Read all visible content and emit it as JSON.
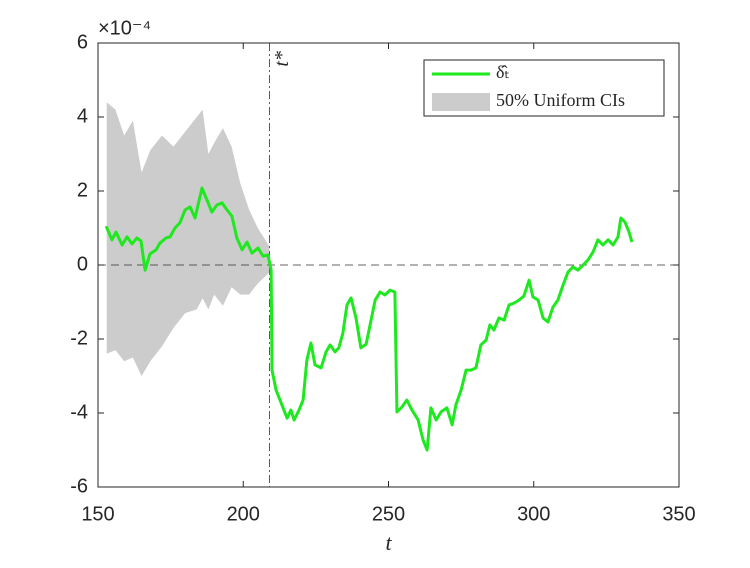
{
  "chart_data": {
    "type": "line",
    "y_multiplier": "×10⁻⁴",
    "xlabel": "t",
    "xlim": [
      150,
      350
    ],
    "xticks": [
      150,
      200,
      250,
      300,
      350
    ],
    "ylim": [
      -6,
      6
    ],
    "yticks": [
      -6,
      -4,
      -2,
      0,
      2,
      4,
      6
    ],
    "vline": {
      "x": 209,
      "label": "t*"
    },
    "hline": 0,
    "legend": "upper right",
    "series": [
      {
        "name": "δ̂ₜ",
        "kind": "line",
        "color": "#1ee81e",
        "x": [
          152.8,
          154.8,
          156.2,
          158.3,
          160,
          161.7,
          163.4,
          164.8,
          166.2,
          167.9,
          170,
          171.3,
          173.4,
          174.8,
          176.5,
          178.2,
          180,
          181.7,
          183.4,
          185.8,
          187.5,
          189.2,
          190.9,
          192.7,
          194.4,
          196.1,
          197.8,
          199.6,
          201.3,
          203,
          205.1,
          206.8,
          208.5,
          209.6,
          209.9,
          211.3,
          213.3,
          215.1,
          216.4,
          217.5,
          219.2,
          220.6,
          221.9,
          223.3,
          224.7,
          226.8,
          228.5,
          229.9,
          231.6,
          232.9,
          234.3,
          235.7,
          237.1,
          238.8,
          240.5,
          242.3,
          244,
          245.4,
          247.1,
          248.8,
          250.5,
          252.2,
          252.9,
          254.6,
          256.3,
          258.1,
          260.2,
          261.9,
          263.3,
          264.6,
          266.4,
          268.1,
          270.1,
          271.9,
          273.2,
          275,
          276.7,
          278.4,
          280.1,
          281.8,
          283.6,
          284.9,
          286.3,
          288,
          289.8,
          291.5,
          293.2,
          294.9,
          296.6,
          298.4,
          299.7,
          301.5,
          303.2,
          304.9,
          306.6,
          308.3,
          310.1,
          311.8,
          313.5,
          315.2,
          317,
          318.7,
          320.4,
          322.1,
          323.8,
          325.6,
          327.3,
          329,
          330,
          331.4,
          332.8,
          333.8
        ],
        "values": [
          1.05,
          0.68,
          0.89,
          0.54,
          0.76,
          0.57,
          0.73,
          0.65,
          -0.14,
          0.3,
          0.41,
          0.59,
          0.73,
          0.76,
          1,
          1.14,
          1.49,
          1.57,
          1.27,
          2.08,
          1.76,
          1.43,
          1.62,
          1.68,
          1.49,
          1.32,
          0.73,
          0.41,
          0.62,
          0.32,
          0.46,
          0.24,
          0.27,
          -0.14,
          -2.84,
          -3.38,
          -3.78,
          -4.14,
          -3.92,
          -4.19,
          -3.92,
          -3.65,
          -2.57,
          -2.11,
          -2.7,
          -2.78,
          -2.35,
          -2.16,
          -2.35,
          -2.24,
          -1.84,
          -1.08,
          -0.89,
          -1.43,
          -2.24,
          -2.14,
          -1.49,
          -0.95,
          -0.73,
          -0.81,
          -0.68,
          -0.73,
          -3.97,
          -3.84,
          -3.65,
          -3.92,
          -4.19,
          -4.73,
          -5,
          -3.86,
          -4.19,
          -3.97,
          -3.86,
          -4.32,
          -3.78,
          -3.38,
          -2.84,
          -2.84,
          -2.78,
          -2.16,
          -2.03,
          -1.62,
          -1.76,
          -1.43,
          -1.49,
          -1.08,
          -1.03,
          -0.95,
          -0.84,
          -0.41,
          -0.86,
          -0.95,
          -1.43,
          -1.54,
          -1.14,
          -0.95,
          -0.54,
          -0.19,
          -0.05,
          -0.14,
          0,
          0.14,
          0.35,
          0.68,
          0.54,
          0.68,
          0.54,
          0.76,
          1.27,
          1.16,
          0.89,
          0.62
        ]
      },
      {
        "name": "50% Uniform CIs",
        "kind": "band",
        "color": "#cccccc",
        "x": [
          153,
          156,
          159,
          162,
          165,
          168,
          172,
          176,
          180,
          184,
          186,
          188,
          190,
          193,
          196,
          199,
          202,
          205,
          209
        ],
        "upper": [
          4.4,
          4.2,
          3.5,
          3.9,
          2.5,
          3.1,
          3.5,
          3.2,
          3.6,
          4.0,
          4.2,
          3.0,
          3.3,
          3.7,
          3.2,
          2.2,
          1.5,
          1.0,
          0.5
        ],
        "lower": [
          -2.4,
          -2.3,
          -2.6,
          -2.5,
          -3.0,
          -2.6,
          -2.2,
          -1.7,
          -1.3,
          -1.2,
          -0.9,
          -1.2,
          -0.8,
          -1.1,
          -0.6,
          -0.8,
          -0.8,
          -0.5,
          -0.2
        ]
      }
    ]
  }
}
